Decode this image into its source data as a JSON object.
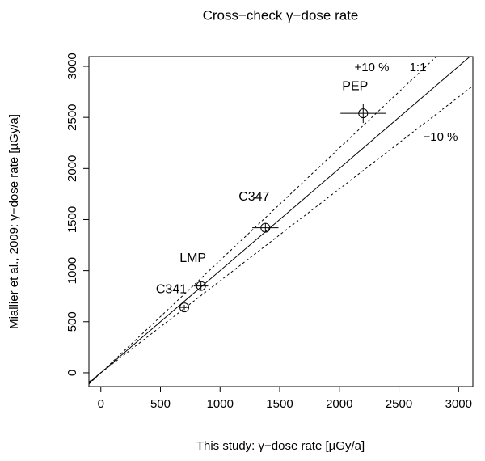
{
  "chart_data": {
    "type": "scatter",
    "title": "Cross−check γ−dose rate",
    "x_label": "This study: γ−dose rate [µGy/a]",
    "y_label": "Miallier et al., 2009: γ−dose rate [µGy/a]",
    "series": [
      {
        "color": "#000000",
        "point_labels": [
          "C341",
          "LMP",
          "C347",
          "PEP"
        ],
        "x": [
          700,
          840,
          1380,
          2200
        ],
        "values": [
          640,
          850,
          1420,
          2540
        ],
        "x_errors": [
          40,
          60,
          110,
          190
        ],
        "errors": [
          25,
          40,
          40,
          95
        ]
      }
    ],
    "lines": [
      {
        "slope": 1,
        "label": "1:1",
        "dash": false
      },
      {
        "slope": 1.1,
        "label": "+10 %",
        "dash": true
      },
      {
        "slope": 0.9,
        "label": "−10 %",
        "dash": true
      }
    ],
    "xlim": [
      -100,
      3120
    ],
    "ylim": [
      -135,
      3095
    ],
    "xticks": [
      0,
      500,
      1000,
      1500,
      2000,
      2500,
      3000
    ],
    "yticks": [
      0,
      500,
      1000,
      1500,
      2000,
      2500,
      3000
    ]
  }
}
